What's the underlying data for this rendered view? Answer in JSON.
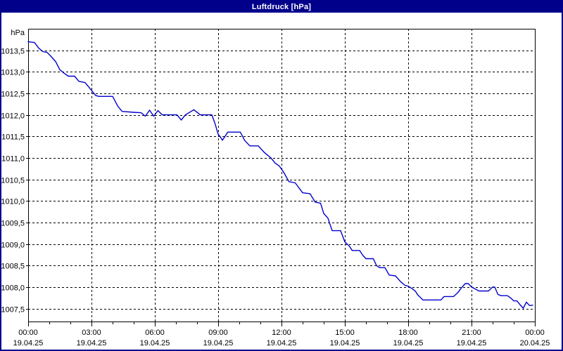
{
  "window": {
    "title": "Luftdruck [hPa]"
  },
  "colors": {
    "title_bar_bg": "#00008B",
    "title_text": "#FFFFFF",
    "window_border": "#00008B",
    "plot_bg": "#FFFFFF",
    "line": "#0000CC",
    "grid": "#000000",
    "axis": "#000000",
    "label_text": "#000000"
  },
  "chart_data": {
    "type": "line",
    "title": "Luftdruck [hPa]",
    "ylabel": "hPa",
    "xlabel": "",
    "legend": "none",
    "grid": true,
    "ylim": [
      1007.2,
      1014.0
    ],
    "xlim_hours": [
      0,
      24
    ],
    "x_minor_step_hours": 1,
    "y_ticks": [
      {
        "value": 1013.5,
        "label": "1013,5"
      },
      {
        "value": 1013.0,
        "label": "1013,0"
      },
      {
        "value": 1012.5,
        "label": "1012,5"
      },
      {
        "value": 1012.0,
        "label": "1012,0"
      },
      {
        "value": 1011.5,
        "label": "1011,5"
      },
      {
        "value": 1011.0,
        "label": "1011,0"
      },
      {
        "value": 1010.5,
        "label": "1010,5"
      },
      {
        "value": 1010.0,
        "label": "1010,0"
      },
      {
        "value": 1009.5,
        "label": "1009,5"
      },
      {
        "value": 1009.0,
        "label": "1009,0"
      },
      {
        "value": 1008.5,
        "label": "1008,5"
      },
      {
        "value": 1008.0,
        "label": "1008,0"
      },
      {
        "value": 1007.5,
        "label": "1007,5"
      }
    ],
    "x_ticks": [
      {
        "hour": 0,
        "time": "00:00",
        "date": "19.04.25"
      },
      {
        "hour": 3,
        "time": "03:00",
        "date": "19.04.25"
      },
      {
        "hour": 6,
        "time": "06:00",
        "date": "19.04.25"
      },
      {
        "hour": 9,
        "time": "09:00",
        "date": "19.04.25"
      },
      {
        "hour": 12,
        "time": "12:00",
        "date": "19.04.25"
      },
      {
        "hour": 15,
        "time": "15:00",
        "date": "19.04.25"
      },
      {
        "hour": 18,
        "time": "18:00",
        "date": "19.04.25"
      },
      {
        "hour": 21,
        "time": "21:00",
        "date": "19.04.25"
      },
      {
        "hour": 24,
        "time": "00:00",
        "date": "20.04.25"
      }
    ],
    "series": [
      {
        "name": "Luftdruck",
        "unit": "hPa",
        "points": [
          [
            0.0,
            1013.7
          ],
          [
            0.3,
            1013.68
          ],
          [
            0.5,
            1013.55
          ],
          [
            0.7,
            1013.47
          ],
          [
            0.9,
            1013.45
          ],
          [
            1.1,
            1013.35
          ],
          [
            1.3,
            1013.24
          ],
          [
            1.5,
            1013.05
          ],
          [
            1.7,
            1012.97
          ],
          [
            1.9,
            1012.9
          ],
          [
            2.2,
            1012.9
          ],
          [
            2.4,
            1012.78
          ],
          [
            2.7,
            1012.75
          ],
          [
            2.85,
            1012.66
          ],
          [
            3.0,
            1012.57
          ],
          [
            3.2,
            1012.45
          ],
          [
            3.35,
            1012.43
          ],
          [
            4.0,
            1012.43
          ],
          [
            4.25,
            1012.2
          ],
          [
            4.45,
            1012.08
          ],
          [
            5.0,
            1012.06
          ],
          [
            5.35,
            1012.05
          ],
          [
            5.55,
            1011.97
          ],
          [
            5.75,
            1012.11
          ],
          [
            5.95,
            1011.97
          ],
          [
            6.15,
            1012.1
          ],
          [
            6.35,
            1012.0
          ],
          [
            7.05,
            1012.0
          ],
          [
            7.25,
            1011.88
          ],
          [
            7.45,
            1012.0
          ],
          [
            7.85,
            1012.12
          ],
          [
            8.15,
            1012.0
          ],
          [
            8.7,
            1012.0
          ],
          [
            8.85,
            1011.8
          ],
          [
            9.0,
            1011.55
          ],
          [
            9.1,
            1011.49
          ],
          [
            9.2,
            1011.41
          ],
          [
            9.35,
            1011.52
          ],
          [
            9.45,
            1011.6
          ],
          [
            10.05,
            1011.6
          ],
          [
            10.25,
            1011.41
          ],
          [
            10.5,
            1011.28
          ],
          [
            10.9,
            1011.28
          ],
          [
            11.2,
            1011.12
          ],
          [
            11.5,
            1011.0
          ],
          [
            11.7,
            1010.88
          ],
          [
            11.9,
            1010.81
          ],
          [
            12.1,
            1010.67
          ],
          [
            12.35,
            1010.45
          ],
          [
            12.65,
            1010.42
          ],
          [
            13.0,
            1010.19
          ],
          [
            13.35,
            1010.17
          ],
          [
            13.6,
            1009.97
          ],
          [
            13.85,
            1009.95
          ],
          [
            14.0,
            1009.71
          ],
          [
            14.2,
            1009.6
          ],
          [
            14.4,
            1009.31
          ],
          [
            14.8,
            1009.31
          ],
          [
            15.0,
            1009.05
          ],
          [
            15.2,
            1008.96
          ],
          [
            15.35,
            1008.85
          ],
          [
            15.7,
            1008.85
          ],
          [
            15.85,
            1008.74
          ],
          [
            16.0,
            1008.66
          ],
          [
            16.35,
            1008.66
          ],
          [
            16.5,
            1008.5
          ],
          [
            16.65,
            1008.45
          ],
          [
            16.9,
            1008.45
          ],
          [
            17.1,
            1008.28
          ],
          [
            17.4,
            1008.26
          ],
          [
            17.65,
            1008.12
          ],
          [
            17.85,
            1008.04
          ],
          [
            18.0,
            1008.02
          ],
          [
            18.2,
            1007.96
          ],
          [
            18.35,
            1007.9
          ],
          [
            18.45,
            1007.82
          ],
          [
            18.7,
            1007.7
          ],
          [
            19.55,
            1007.7
          ],
          [
            19.7,
            1007.78
          ],
          [
            20.15,
            1007.78
          ],
          [
            20.35,
            1007.87
          ],
          [
            20.5,
            1007.97
          ],
          [
            20.7,
            1008.08
          ],
          [
            20.85,
            1008.08
          ],
          [
            21.0,
            1008.0
          ],
          [
            21.2,
            1007.95
          ],
          [
            21.35,
            1007.91
          ],
          [
            21.8,
            1007.91
          ],
          [
            22.0,
            1008.0
          ],
          [
            22.1,
            1008.0
          ],
          [
            22.25,
            1007.83
          ],
          [
            22.4,
            1007.8
          ],
          [
            22.7,
            1007.8
          ],
          [
            22.85,
            1007.75
          ],
          [
            23.0,
            1007.68
          ],
          [
            23.15,
            1007.68
          ],
          [
            23.3,
            1007.59
          ],
          [
            23.45,
            1007.51
          ],
          [
            23.6,
            1007.65
          ],
          [
            23.75,
            1007.57
          ],
          [
            23.9,
            1007.58
          ]
        ]
      }
    ]
  }
}
